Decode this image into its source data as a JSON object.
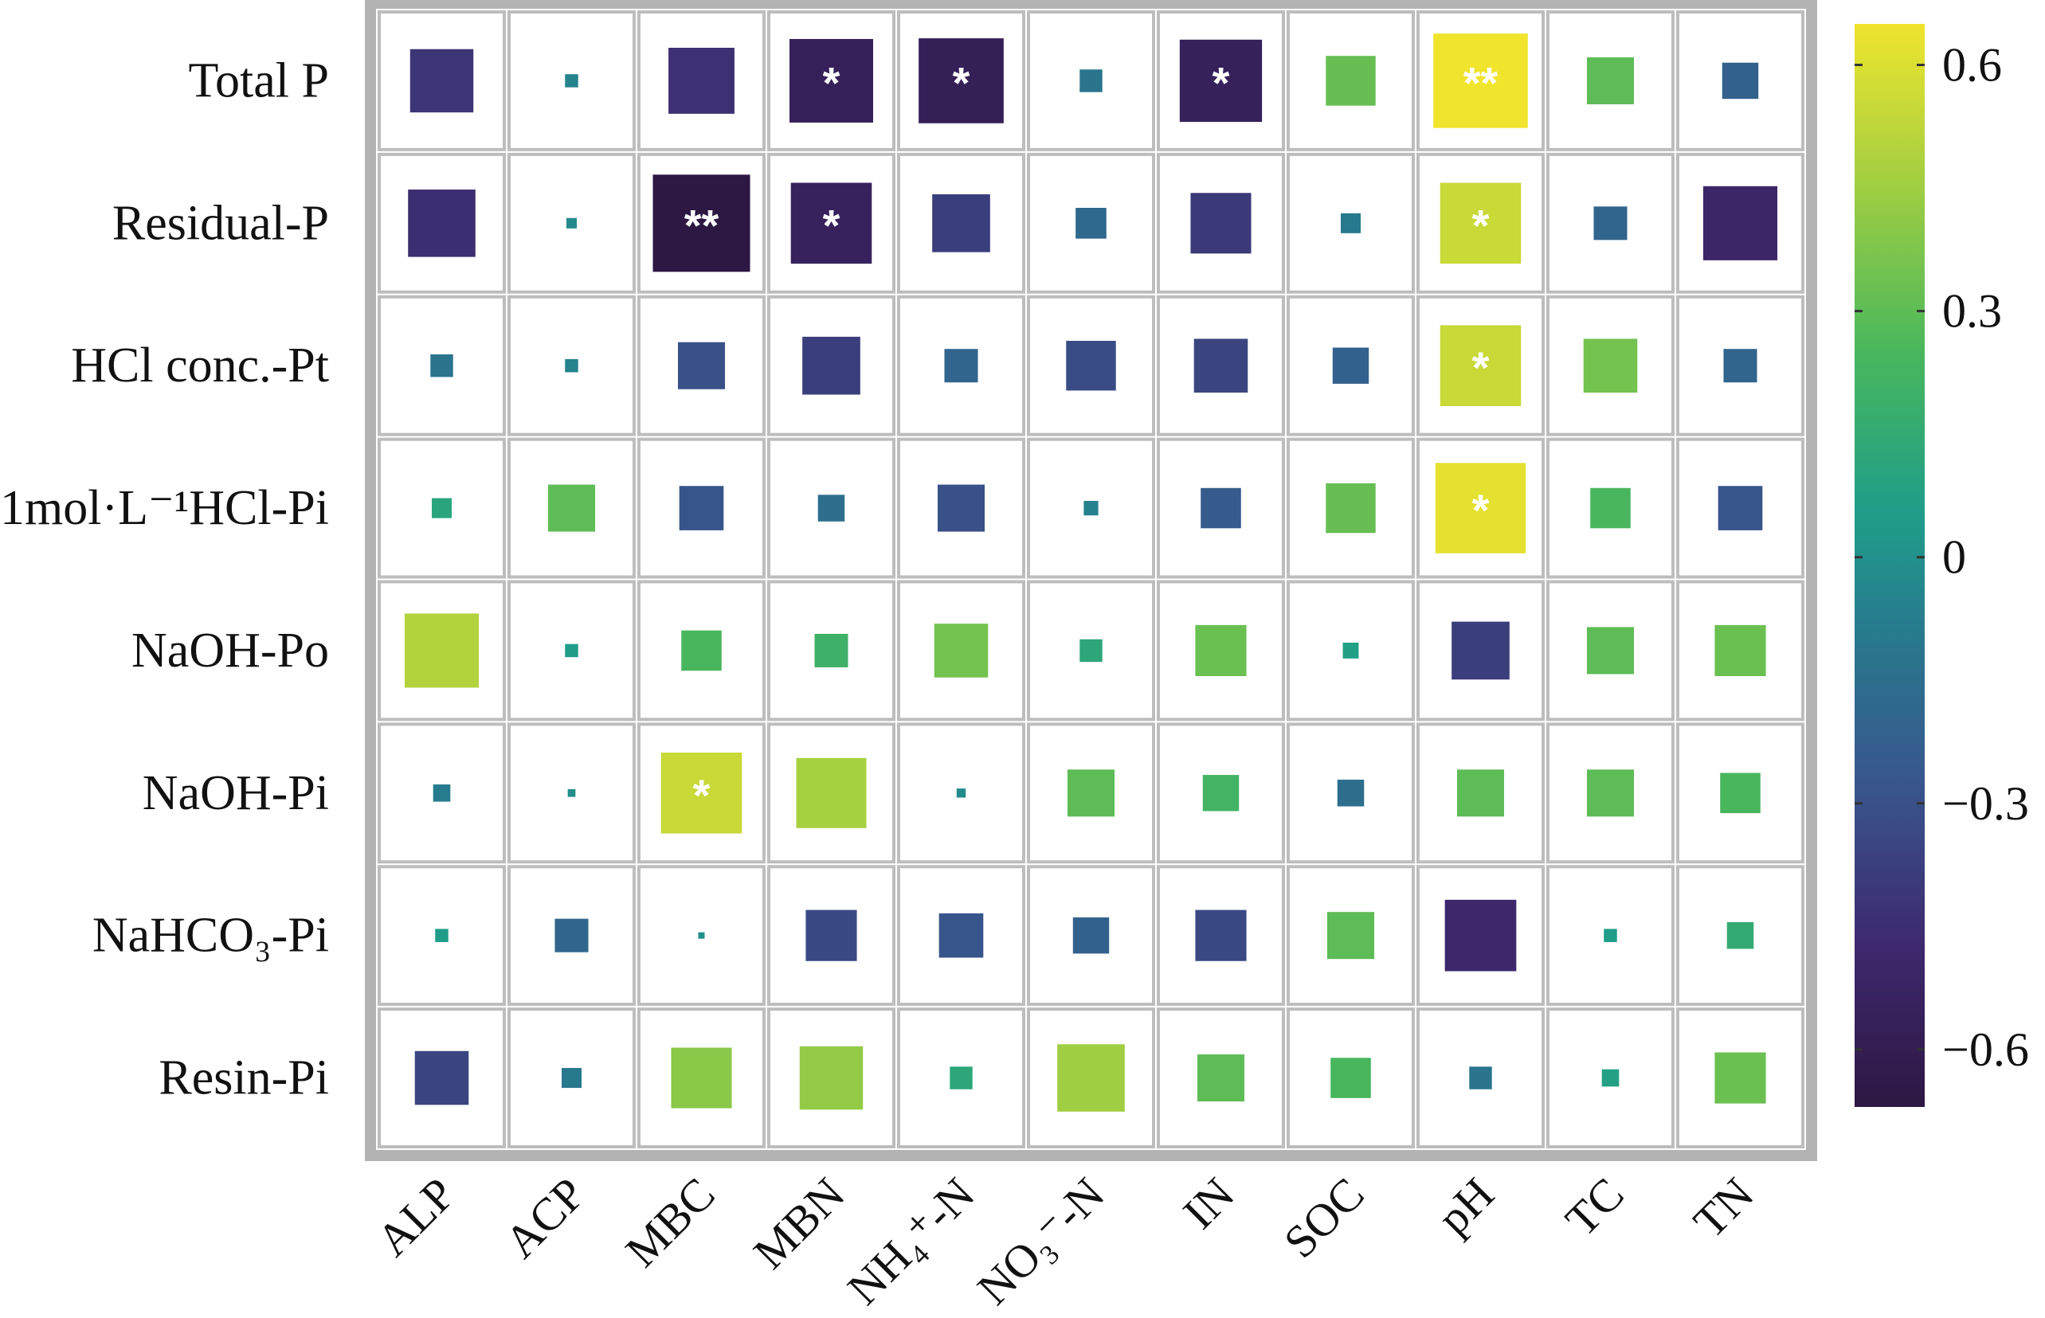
{
  "chart_data": {
    "type": "heatmap",
    "rows": [
      "Total P",
      "Residual-P",
      "HCl conc.-Pt",
      "1mol·L⁻¹HCl-Pi",
      "NaOH-Po",
      "NaOH-Pi",
      "NaHCO₃-Pi",
      "Resin-Pi"
    ],
    "columns": [
      "ALP",
      "ACP",
      "MBC",
      "MBN",
      "NH₄⁺-N",
      "NO₃⁻-N",
      "IN",
      "SOC",
      "pH",
      "TC",
      "TN"
    ],
    "values": [
      [
        -0.42,
        -0.05,
        -0.44,
        -0.57,
        -0.58,
        -0.12,
        -0.56,
        0.32,
        0.65,
        0.3,
        -0.22
      ],
      [
        -0.45,
        -0.03,
        -0.67,
        -0.55,
        -0.38,
        -0.18,
        -0.4,
        -0.1,
        0.55,
        -0.2,
        -0.5
      ],
      [
        -0.12,
        -0.05,
        -0.3,
        -0.38,
        -0.2,
        -0.32,
        -0.35,
        -0.22,
        0.55,
        0.35,
        -0.2
      ],
      [
        0.1,
        0.3,
        -0.28,
        -0.15,
        -0.3,
        -0.06,
        -0.25,
        0.32,
        0.62,
        0.25,
        -0.28
      ],
      [
        0.5,
        0.05,
        0.25,
        0.2,
        0.35,
        0.12,
        0.33,
        0.07,
        -0.38,
        0.3,
        0.33
      ],
      [
        -0.08,
        -0.01,
        0.55,
        0.47,
        -0.02,
        0.3,
        0.22,
        -0.15,
        0.3,
        0.3,
        0.25
      ],
      [
        0.05,
        -0.2,
        0.0,
        -0.33,
        -0.28,
        -0.22,
        -0.33,
        0.3,
        -0.48,
        0.05,
        0.15
      ],
      [
        -0.35,
        -0.1,
        0.4,
        0.42,
        0.12,
        0.45,
        0.3,
        0.25,
        -0.12,
        0.08,
        0.33
      ]
    ],
    "significance": [
      [
        "",
        "",
        "",
        "*",
        "*",
        "",
        "*",
        "",
        "**",
        "",
        ""
      ],
      [
        "",
        "",
        "**",
        "*",
        "",
        "",
        "",
        "",
        "*",
        "",
        ""
      ],
      [
        "",
        "",
        "",
        "",
        "",
        "",
        "",
        "",
        "*",
        "",
        ""
      ],
      [
        "",
        "",
        "",
        "",
        "",
        "",
        "",
        "",
        "*",
        "",
        ""
      ],
      [
        "",
        "",
        "",
        "",
        "",
        "",
        "",
        "",
        "",
        "",
        ""
      ],
      [
        "",
        "",
        "*",
        "",
        "",
        "",
        "",
        "",
        "",
        "",
        ""
      ],
      [
        "",
        "",
        "",
        "",
        "",
        "",
        "",
        "",
        "",
        "",
        ""
      ],
      [
        "",
        "",
        "",
        "",
        "",
        "",
        "",
        "",
        "",
        "",
        ""
      ]
    ],
    "colorscale": {
      "name": "viridis",
      "range": [
        -0.67,
        0.65
      ],
      "ticks": [
        0.6,
        0.3,
        0,
        -0.3,
        -0.6
      ],
      "tick_labels": [
        "0.6",
        "0.3",
        "0",
        "−0.3",
        "−0.6"
      ]
    },
    "legend_position": "right",
    "grid": true
  },
  "colors": {
    "panel_border": "#b3b3b3",
    "cell_border": "#bdbdbd",
    "star": "#ffffff",
    "text": "#111111"
  }
}
